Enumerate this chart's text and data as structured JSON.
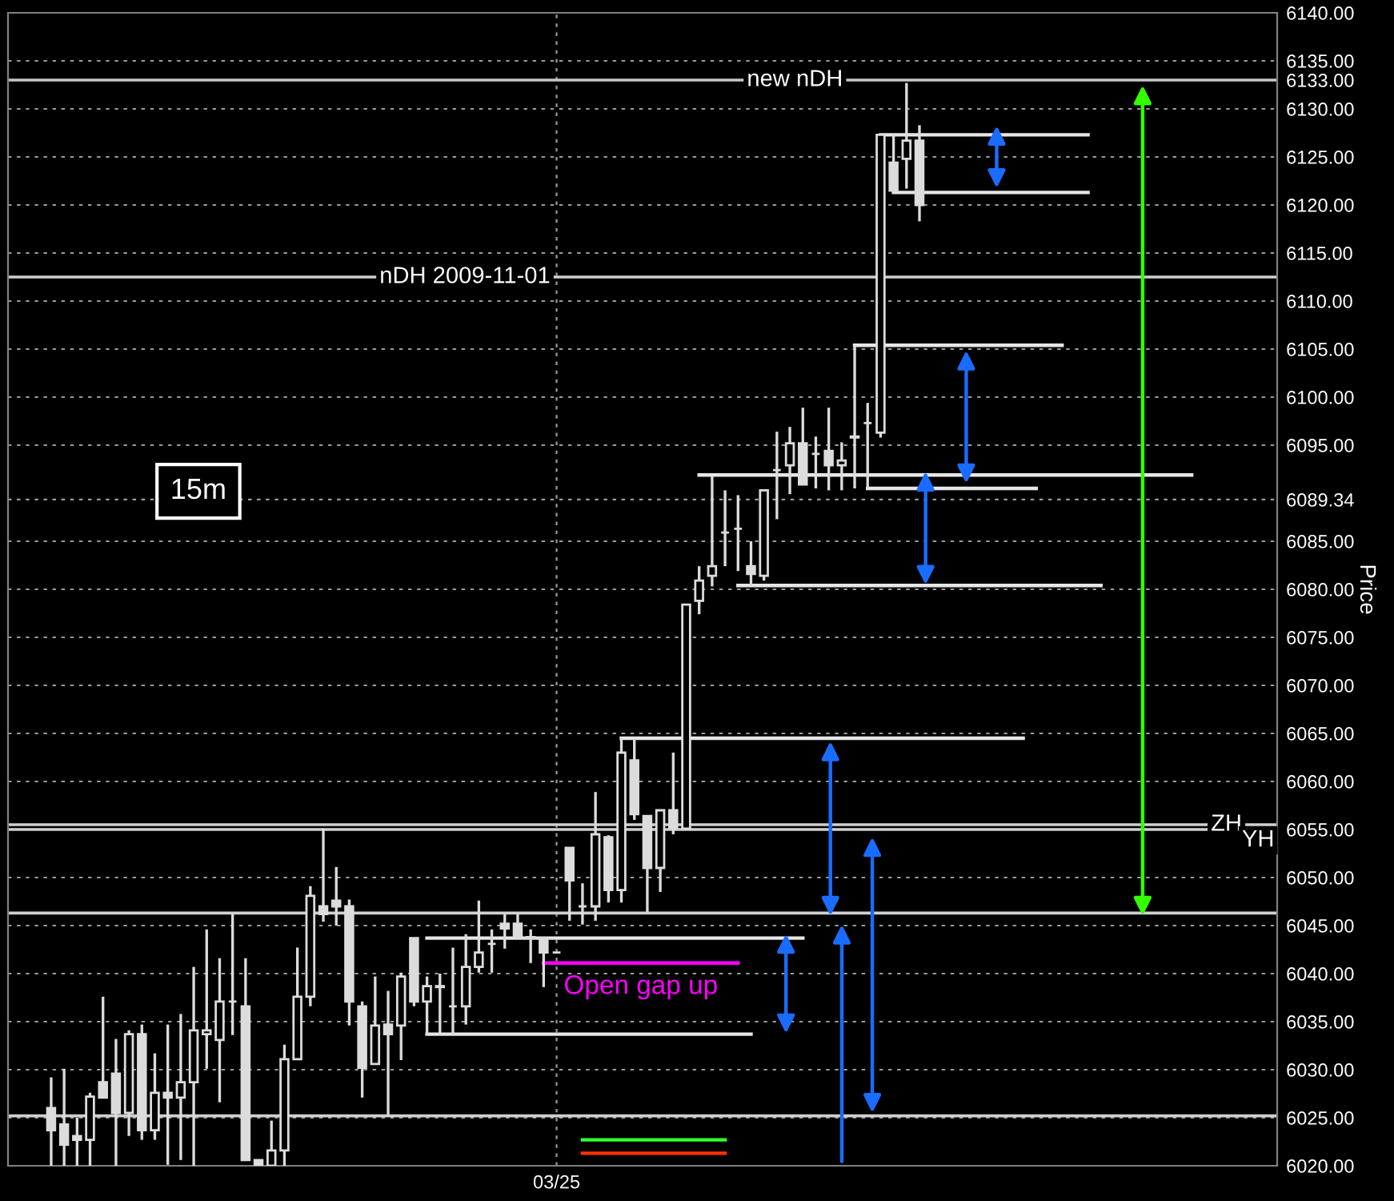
{
  "chart_data": {
    "type": "candlestick",
    "ylabel": "Price",
    "annotations": [
      "15m"
    ],
    "categories": [
      null,
      null,
      null,
      null,
      null,
      null,
      null,
      null,
      null,
      null,
      null,
      null,
      null,
      null,
      null,
      null,
      null,
      null,
      null,
      null,
      null,
      null,
      null,
      null,
      null,
      null,
      null,
      null,
      null,
      null,
      null,
      null,
      null,
      null,
      null,
      null,
      null,
      null,
      null,
      "03/25",
      null,
      null,
      null,
      null,
      null,
      null,
      null,
      null,
      null,
      null,
      null,
      null,
      null,
      null,
      null,
      null,
      null,
      null,
      null,
      null,
      null,
      null,
      null,
      null,
      null,
      null,
      null,
      null,
      null,
      null,
      null,
      null,
      null,
      null,
      null,
      null,
      null,
      null,
      null,
      null,
      null,
      null,
      null,
      null,
      null,
      null,
      null,
      null,
      null,
      null,
      null,
      null,
      null,
      null,
      null,
      null
    ],
    "ylim": [
      6020,
      6140
    ],
    "yticks": [
      {
        "value": 6020,
        "label": "6020.00"
      },
      {
        "value": 6025,
        "label": "6025.00"
      },
      {
        "value": 6030,
        "label": "6030.00"
      },
      {
        "value": 6035,
        "label": "6035.00"
      },
      {
        "value": 6040,
        "label": "6040.00"
      },
      {
        "value": 6045,
        "label": "6045.00"
      },
      {
        "value": 6050,
        "label": "6050.00"
      },
      {
        "value": 6055,
        "label": "6055.00"
      },
      {
        "value": 6060,
        "label": "6060.00"
      },
      {
        "value": 6065,
        "label": "6065.00"
      },
      {
        "value": 6070,
        "label": "6070.00"
      },
      {
        "value": 6075,
        "label": "6075.00"
      },
      {
        "value": 6080,
        "label": "6080.00"
      },
      {
        "value": 6085,
        "label": "6085.00"
      },
      {
        "value": 6089.34,
        "label": "6089.34"
      },
      {
        "value": 6095,
        "label": "6095.00"
      },
      {
        "value": 6100,
        "label": "6100.00"
      },
      {
        "value": 6105,
        "label": "6105.00"
      },
      {
        "value": 6110,
        "label": "6110.00"
      },
      {
        "value": 6115,
        "label": "6115.00"
      },
      {
        "value": 6120,
        "label": "6120.00"
      },
      {
        "value": 6125,
        "label": "6125.00"
      },
      {
        "value": 6130,
        "label": "6130.00"
      },
      {
        "value": 6133,
        "label": "6133.00"
      },
      {
        "value": 6135,
        "label": "6135.00"
      },
      {
        "value": 6140,
        "label": "6140.00"
      }
    ],
    "grid": true,
    "ref_lines": [
      {
        "axis": "y",
        "value": 6133,
        "label": "new nDH",
        "color": "#c8c8c8"
      },
      {
        "axis": "y",
        "value": 6112.5,
        "label": "nDH 2009-11-01",
        "color": "#d0d0d0"
      },
      {
        "axis": "y",
        "value": 6055.5,
        "label": "ZH",
        "color": "#d0d0d0"
      },
      {
        "axis": "y",
        "value": 6055.0,
        "label": "YH",
        "color": "#d0d0d0"
      },
      {
        "axis": "y",
        "value": 6046.3,
        "color": "#d0d0d0"
      },
      {
        "axis": "y",
        "value": 6025.2,
        "color": "#d0d0d0"
      }
    ],
    "series": [
      {
        "type": "candlestick",
        "color": "#dcdcdc",
        "ohlc": [
          [
            6026.0,
            6029.2,
            6020.0,
            6023.7
          ],
          [
            6024.3,
            6030.1,
            6020.0,
            6022.2
          ],
          [
            6023.1,
            6025.0,
            6020.0,
            6022.7
          ],
          [
            6022.7,
            6027.6,
            6020.0,
            6027.2
          ],
          [
            6028.7,
            6037.6,
            6027.1,
            6027.1
          ],
          [
            6029.6,
            6033.2,
            6020.0,
            6025.5
          ],
          [
            6025.5,
            6034.1,
            6023.1,
            6033.7
          ],
          [
            6033.7,
            6034.7,
            6022.7,
            6023.7
          ],
          [
            6023.7,
            6031.7,
            6022.7,
            6027.6
          ],
          [
            6027.6,
            6034.7,
            6020.1,
            6027.1
          ],
          [
            6027.1,
            6035.8,
            6020.6,
            6028.7
          ],
          [
            6028.7,
            6040.7,
            6020.0,
            6034.1
          ],
          [
            6033.7,
            6044.6,
            6030.1,
            6034.1
          ],
          [
            6033.1,
            6041.6,
            6026.6,
            6037.1
          ],
          [
            6037.1,
            6046.2,
            6033.6,
            6037.1
          ],
          [
            6036.6,
            6041.6,
            6020.6,
            6020.6
          ],
          [
            6020.6,
            6020.6,
            6020.0,
            6020.0
          ],
          [
            6020.0,
            6024.7,
            6020.0,
            6021.6
          ],
          [
            6021.6,
            6032.6,
            6020.0,
            6031.1
          ],
          [
            6031.1,
            6042.7,
            6031.0,
            6037.6
          ],
          [
            6037.6,
            6049.1,
            6036.6,
            6048.1
          ],
          [
            6047.0,
            6055.1,
            6045.4,
            6046.2
          ],
          [
            6047.6,
            6051.1,
            6045.0,
            6047.0
          ],
          [
            6047.0,
            6047.7,
            6034.6,
            6037.1
          ],
          [
            6036.6,
            6037.1,
            6027.1,
            6030.2
          ],
          [
            6030.6,
            6039.7,
            6030.6,
            6034.6
          ],
          [
            6034.7,
            6038.2,
            6025.2,
            6033.7
          ],
          [
            6034.6,
            6040.1,
            6031.0,
            6039.7
          ],
          [
            6043.7,
            6043.7,
            6036.6,
            6037.1
          ],
          [
            6037.1,
            6039.7,
            6033.6,
            6038.7
          ],
          [
            6038.7,
            6040.0,
            6033.6,
            6038.6
          ],
          [
            6036.6,
            6042.7,
            6033.6,
            6036.6
          ],
          [
            6036.6,
            6044.1,
            6034.7,
            6040.7
          ],
          [
            6040.7,
            6047.6,
            6040.1,
            6042.2
          ],
          [
            6043.1,
            6044.6,
            6040.1,
            6043.1
          ],
          [
            6045.2,
            6046.2,
            6042.6,
            6044.7
          ],
          [
            6045.2,
            6046.2,
            6043.6,
            6043.8
          ],
          [
            6043.8,
            6044.6,
            6041.1,
            6043.7
          ],
          [
            6043.7,
            6043.7,
            6038.6,
            6042.2
          ],
          [
            6042.2,
            6042.2,
            6042.2,
            6042.2
          ],
          [
            6053.1,
            6053.1,
            6045.5,
            6049.7
          ],
          [
            6047.0,
            6049.4,
            6045.1,
            6047.0
          ],
          [
            6047.0,
            6058.9,
            6045.5,
            6054.5
          ],
          [
            6054.2,
            6054.4,
            6047.4,
            6048.7
          ],
          [
            6048.7,
            6064.6,
            6047.4,
            6063.0
          ],
          [
            6062.2,
            6064.6,
            6056.0,
            6056.6
          ],
          [
            6056.4,
            6056.4,
            6046.4,
            6051.0
          ],
          [
            6051.0,
            6057.0,
            6048.5,
            6057.0
          ],
          [
            6057.0,
            6063.0,
            6054.5,
            6055.2
          ],
          [
            6055.1,
            6078.4,
            6055.1,
            6078.4
          ],
          [
            6078.8,
            6082.4,
            6077.4,
            6080.9
          ],
          [
            6081.4,
            6091.8,
            6080.3,
            6082.4
          ],
          [
            6085.9,
            6090.3,
            6082.4,
            6085.9
          ],
          [
            6086.3,
            6089.8,
            6081.9,
            6086.3
          ],
          [
            6082.4,
            6085.0,
            6080.4,
            6081.6
          ],
          [
            6081.4,
            6090.3,
            6080.9,
            6090.3
          ],
          [
            6092.4,
            6096.4,
            6087.3,
            6092.4
          ],
          [
            6092.9,
            6096.9,
            6089.9,
            6095.2
          ],
          [
            6095.2,
            6098.9,
            6090.9,
            6090.9
          ],
          [
            6094.1,
            6095.9,
            6090.5,
            6094.1
          ],
          [
            6094.4,
            6098.9,
            6090.3,
            6092.9
          ],
          [
            6092.9,
            6095.3,
            6090.3,
            6093.4
          ],
          [
            6095.8,
            6105.4,
            6090.5,
            6095.9
          ],
          [
            6097.3,
            6099.4,
            6090.5,
            6097.3
          ],
          [
            6096.3,
            6127.3,
            6095.8,
            6127.3
          ],
          [
            6124.4,
            6127.3,
            6121.3,
            6121.5
          ],
          [
            6124.8,
            6132.7,
            6121.7,
            6126.7
          ],
          [
            6126.7,
            6128.3,
            6118.3,
            6120.0
          ],
          null,
          null,
          null,
          null,
          null,
          null,
          null,
          null,
          null,
          null,
          null,
          null,
          null,
          null,
          null,
          null,
          null,
          null,
          null,
          null,
          null,
          null,
          null,
          null,
          null,
          null,
          null,
          null
        ]
      },
      {
        "type": "line",
        "color": "#e6e6e6",
        "values": [
          null,
          null,
          null,
          null,
          null,
          null,
          null,
          null,
          null,
          null,
          null,
          null,
          null,
          null,
          null,
          null,
          null,
          null,
          null,
          null,
          null,
          null,
          null,
          null,
          null,
          null,
          null,
          null,
          null,
          null,
          null,
          null,
          null,
          null,
          null,
          null,
          null,
          null,
          null,
          null,
          null,
          null,
          null,
          null,
          null,
          null,
          null,
          null,
          null,
          null,
          null,
          null,
          null,
          null,
          null,
          null,
          null,
          null,
          null,
          null,
          null,
          null,
          null,
          null,
          6127.3,
          6127.3,
          6127.3,
          6127.3,
          6127.3,
          6127.3,
          6127.3,
          6127.3,
          6127.3,
          6127.3,
          6127.3,
          6127.3,
          6127.3,
          6127.3,
          6127.3,
          6127.3,
          6127.3,
          null,
          null,
          null,
          null,
          null,
          null,
          null,
          null,
          null,
          null,
          null,
          null,
          null,
          null,
          null
        ]
      },
      {
        "type": "line",
        "color": "#e6e6e6",
        "values": [
          null,
          null,
          null,
          null,
          null,
          null,
          null,
          null,
          null,
          null,
          null,
          null,
          null,
          null,
          null,
          null,
          null,
          null,
          null,
          null,
          null,
          null,
          null,
          null,
          null,
          null,
          null,
          null,
          null,
          null,
          null,
          null,
          null,
          null,
          null,
          null,
          null,
          null,
          null,
          null,
          null,
          null,
          null,
          null,
          null,
          null,
          null,
          null,
          null,
          null,
          null,
          null,
          null,
          null,
          null,
          null,
          null,
          null,
          null,
          null,
          null,
          null,
          null,
          null,
          null,
          6121.3,
          6121.3,
          6121.3,
          6121.3,
          6121.3,
          6121.3,
          6121.3,
          6121.3,
          6121.3,
          6121.3,
          6121.3,
          6121.3,
          6121.3,
          6121.3,
          6121.3,
          6121.3,
          null,
          null,
          null,
          null,
          null,
          null,
          null,
          null,
          null,
          null,
          null,
          null,
          null,
          null,
          null
        ]
      },
      {
        "type": "line",
        "color": "#e6e6e6",
        "values": [
          null,
          null,
          null,
          null,
          null,
          null,
          null,
          null,
          null,
          null,
          null,
          null,
          null,
          null,
          null,
          null,
          null,
          null,
          null,
          null,
          null,
          null,
          null,
          null,
          null,
          null,
          null,
          null,
          null,
          null,
          null,
          null,
          null,
          null,
          null,
          null,
          null,
          null,
          null,
          null,
          null,
          null,
          null,
          null,
          null,
          null,
          null,
          null,
          null,
          null,
          null,
          null,
          null,
          null,
          null,
          null,
          null,
          null,
          null,
          null,
          null,
          null,
          6105.4,
          6105.4,
          6105.4,
          6105.4,
          6105.4,
          6105.4,
          6105.4,
          6105.4,
          6105.4,
          6105.4,
          6105.4,
          6105.4,
          6105.4,
          6105.4,
          6105.4,
          6105.4,
          6105.4,
          null,
          null,
          null,
          null,
          null,
          null,
          null,
          null,
          null,
          null,
          null,
          null,
          null,
          null,
          null,
          null,
          null
        ]
      },
      {
        "type": "line",
        "color": "#e6e6e6",
        "values": [
          null,
          null,
          null,
          null,
          null,
          null,
          null,
          null,
          null,
          null,
          null,
          null,
          null,
          null,
          null,
          null,
          null,
          null,
          null,
          null,
          null,
          null,
          null,
          null,
          null,
          null,
          null,
          null,
          null,
          null,
          null,
          null,
          null,
          null,
          null,
          null,
          null,
          null,
          null,
          null,
          null,
          null,
          null,
          null,
          null,
          null,
          null,
          null,
          null,
          null,
          6091.9,
          6091.9,
          6091.9,
          6091.9,
          6091.9,
          6091.9,
          6091.9,
          6091.9,
          6091.9,
          6091.9,
          6091.9,
          6091.9,
          6091.9,
          6091.9,
          6091.9,
          6091.9,
          6091.9,
          6091.9,
          6091.9,
          6091.9,
          6091.9,
          6091.9,
          6091.9,
          6091.9,
          6091.9,
          6091.9,
          6091.9,
          6091.9,
          6091.9,
          6091.9,
          6091.9,
          6091.9,
          6091.9,
          6091.9,
          6091.9,
          6091.9,
          6091.9,
          6091.9,
          6091.9,
          null,
          null,
          null,
          null,
          null,
          null,
          null
        ]
      },
      {
        "type": "line",
        "color": "#e6e6e6",
        "values": [
          null,
          null,
          null,
          null,
          null,
          null,
          null,
          null,
          null,
          null,
          null,
          null,
          null,
          null,
          null,
          null,
          null,
          null,
          null,
          null,
          null,
          null,
          null,
          null,
          null,
          null,
          null,
          null,
          null,
          null,
          null,
          null,
          null,
          null,
          null,
          null,
          null,
          null,
          null,
          null,
          null,
          null,
          null,
          null,
          null,
          null,
          null,
          null,
          null,
          null,
          null,
          null,
          null,
          null,
          null,
          null,
          null,
          null,
          null,
          null,
          null,
          null,
          null,
          6090.5,
          6090.5,
          6090.5,
          6090.5,
          6090.5,
          6090.5,
          6090.5,
          6090.5,
          6090.5,
          6090.5,
          6090.5,
          6090.5,
          6090.5,
          6090.5,
          null,
          null,
          null,
          null,
          null,
          null,
          null,
          null,
          null,
          null,
          null,
          null,
          null,
          null,
          null,
          null,
          null,
          null,
          null
        ]
      },
      {
        "type": "line",
        "color": "#e6e6e6",
        "values": [
          null,
          null,
          null,
          null,
          null,
          null,
          null,
          null,
          null,
          null,
          null,
          null,
          null,
          null,
          null,
          null,
          null,
          null,
          null,
          null,
          null,
          null,
          null,
          null,
          null,
          null,
          null,
          null,
          null,
          null,
          null,
          null,
          null,
          null,
          null,
          null,
          null,
          null,
          null,
          null,
          null,
          null,
          null,
          null,
          null,
          null,
          null,
          null,
          null,
          null,
          null,
          null,
          null,
          6080.4,
          6080.4,
          6080.4,
          6080.4,
          6080.4,
          6080.4,
          6080.4,
          6080.4,
          6080.4,
          6080.4,
          6080.4,
          6080.4,
          6080.4,
          6080.4,
          6080.4,
          6080.4,
          6080.4,
          6080.4,
          6080.4,
          6080.4,
          6080.4,
          6080.4,
          6080.4,
          6080.4,
          6080.4,
          6080.4,
          6080.4,
          6080.4,
          6080.4,
          null,
          null,
          null,
          null,
          null,
          null,
          null,
          null,
          null,
          null,
          null,
          null,
          null,
          null
        ]
      },
      {
        "type": "line",
        "color": "#e6e6e6",
        "values": [
          null,
          null,
          null,
          null,
          null,
          null,
          null,
          null,
          null,
          null,
          null,
          null,
          null,
          null,
          null,
          null,
          null,
          null,
          null,
          null,
          null,
          null,
          null,
          null,
          null,
          null,
          null,
          null,
          null,
          null,
          null,
          null,
          null,
          null,
          null,
          null,
          null,
          null,
          null,
          null,
          null,
          null,
          null,
          null,
          6064.5,
          6064.5,
          6064.5,
          6064.5,
          6064.5,
          6064.5,
          6064.5,
          6064.5,
          6064.5,
          6064.5,
          6064.5,
          6064.5,
          6064.5,
          6064.5,
          6064.5,
          6064.5,
          6064.5,
          6064.5,
          6064.5,
          6064.5,
          6064.5,
          6064.5,
          6064.5,
          6064.5,
          6064.5,
          6064.5,
          6064.5,
          6064.5,
          6064.5,
          6064.5,
          6064.5,
          6064.5,
          null,
          null,
          null,
          null,
          null,
          null,
          null,
          null,
          null,
          null,
          null,
          null,
          null,
          null,
          null,
          null,
          null,
          null,
          null,
          null
        ]
      },
      {
        "type": "line",
        "color": "#e6e6e6",
        "values": [
          null,
          null,
          null,
          null,
          null,
          null,
          null,
          null,
          null,
          null,
          null,
          null,
          null,
          null,
          null,
          null,
          null,
          null,
          null,
          null,
          null,
          null,
          null,
          null,
          null,
          null,
          null,
          null,
          null,
          6043.7,
          6043.7,
          6043.7,
          6043.7,
          6043.7,
          6043.7,
          6043.7,
          6043.7,
          6043.7,
          6043.7,
          6043.7,
          6043.7,
          6043.7,
          6043.7,
          6043.7,
          6043.7,
          6043.7,
          6043.7,
          6043.7,
          6043.7,
          6043.7,
          6043.7,
          6043.7,
          6043.7,
          6043.7,
          6043.7,
          6043.7,
          6043.7,
          6043.7,
          6043.7,
          null,
          null,
          null,
          null,
          null,
          null,
          null,
          null,
          null,
          null,
          null,
          null,
          null,
          null,
          null,
          null,
          null,
          null,
          null,
          null,
          null,
          null,
          null,
          null,
          null,
          null,
          null,
          null,
          null,
          null,
          null,
          null,
          null,
          null,
          null,
          null,
          null
        ]
      },
      {
        "type": "line",
        "color": "#e6e6e6",
        "values": [
          null,
          null,
          null,
          null,
          null,
          null,
          null,
          null,
          null,
          null,
          null,
          null,
          null,
          null,
          null,
          null,
          null,
          null,
          null,
          null,
          null,
          null,
          null,
          null,
          null,
          null,
          null,
          null,
          null,
          6033.7,
          6033.7,
          6033.7,
          6033.7,
          6033.7,
          6033.7,
          6033.7,
          6033.7,
          6033.7,
          6033.7,
          6033.7,
          6033.7,
          6033.7,
          6033.7,
          6033.7,
          6033.7,
          6033.7,
          6033.7,
          6033.7,
          6033.7,
          6033.7,
          6033.7,
          6033.7,
          6033.7,
          6033.7,
          6033.7,
          null,
          null,
          null,
          null,
          null,
          null,
          null,
          null,
          null,
          null,
          null,
          null,
          null,
          null,
          null,
          null,
          null,
          null,
          null,
          null,
          null,
          null,
          null,
          null,
          null,
          null,
          null,
          null,
          null,
          null,
          null,
          null,
          null,
          null,
          null,
          null,
          null,
          null,
          null,
          null,
          null
        ]
      },
      {
        "name": "Open gap up",
        "type": "line",
        "color": "#ff00ff",
        "values": [
          null,
          null,
          null,
          null,
          null,
          null,
          null,
          null,
          null,
          null,
          null,
          null,
          null,
          null,
          null,
          null,
          null,
          null,
          null,
          null,
          null,
          null,
          null,
          null,
          null,
          null,
          null,
          null,
          null,
          null,
          null,
          null,
          null,
          null,
          null,
          null,
          null,
          null,
          6041.1,
          6041.1,
          6041.1,
          6041.1,
          6041.1,
          6041.1,
          6041.1,
          6041.1,
          6041.1,
          6041.1,
          6041.1,
          6041.1,
          6041.1,
          6041.1,
          6041.1,
          6041.1,
          null,
          null,
          null,
          null,
          null,
          null,
          null,
          null,
          null,
          null,
          null,
          null,
          null,
          null,
          null,
          null,
          null,
          null,
          null,
          null,
          null,
          null,
          null,
          null,
          null,
          null,
          null,
          null,
          null,
          null,
          null,
          null,
          null,
          null,
          null,
          null,
          null,
          null,
          null,
          null,
          null,
          null
        ]
      },
      {
        "type": "line",
        "color": "#33ff33",
        "values": [
          null,
          null,
          null,
          null,
          null,
          null,
          null,
          null,
          null,
          null,
          null,
          null,
          null,
          null,
          null,
          null,
          null,
          null,
          null,
          null,
          null,
          null,
          null,
          null,
          null,
          null,
          null,
          null,
          null,
          null,
          null,
          null,
          null,
          null,
          null,
          null,
          null,
          null,
          null,
          null,
          null,
          6022.7,
          6022.7,
          6022.7,
          6022.7,
          6022.7,
          6022.7,
          6022.7,
          6022.7,
          6022.7,
          6022.7,
          6022.7,
          6022.7,
          null,
          null,
          null,
          null,
          null,
          null,
          null,
          null,
          null,
          null,
          null,
          null,
          null,
          null,
          null,
          null,
          null,
          null,
          null,
          null,
          null,
          null,
          null,
          null,
          null,
          null,
          null,
          null,
          null,
          null,
          null,
          null,
          null,
          null,
          null,
          null,
          null,
          null,
          null,
          null,
          null,
          null,
          null
        ]
      },
      {
        "type": "line",
        "color": "#ff3300",
        "values": [
          null,
          null,
          null,
          null,
          null,
          null,
          null,
          null,
          null,
          null,
          null,
          null,
          null,
          null,
          null,
          null,
          null,
          null,
          null,
          null,
          null,
          null,
          null,
          null,
          null,
          null,
          null,
          null,
          null,
          null,
          null,
          null,
          null,
          null,
          null,
          null,
          null,
          null,
          null,
          null,
          null,
          6021.3,
          6021.3,
          6021.3,
          6021.3,
          6021.3,
          6021.3,
          6021.3,
          6021.3,
          6021.3,
          6021.3,
          6021.3,
          6021.3,
          null,
          null,
          null,
          null,
          null,
          null,
          null,
          null,
          null,
          null,
          null,
          null,
          null,
          null,
          null,
          null,
          null,
          null,
          null,
          null,
          null,
          null,
          null,
          null,
          null,
          null,
          null,
          null,
          null,
          null,
          null,
          null,
          null,
          null,
          null,
          null,
          null,
          null,
          null,
          null,
          null,
          null,
          null
        ]
      }
    ]
  }
}
